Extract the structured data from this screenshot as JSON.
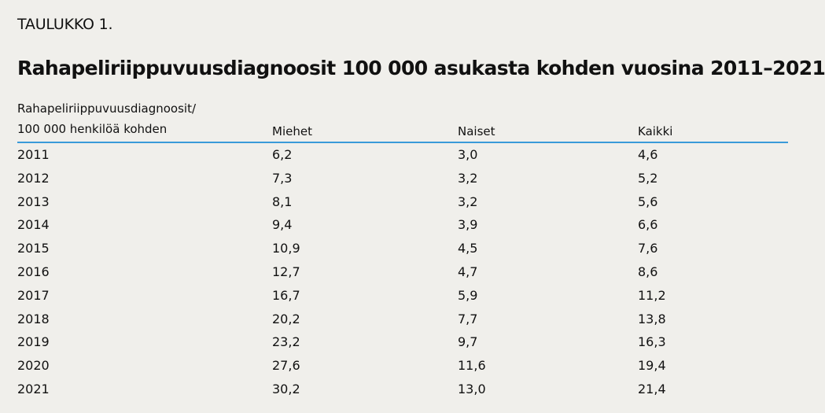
{
  "label": "TAULUKKO 1.",
  "title": "Rahapeliriippuvuusdiagnoosit 100 000 asukasta kohden vuosina 2011–2021",
  "table": {
    "header": {
      "col0_line1": "Rahapeliriippuvuusdiagnoosit/",
      "col0_line2": "100 000 henkilöä kohden",
      "col1": "Miehet",
      "col2": "Naiset",
      "col3": "Kaikki"
    },
    "rows": [
      [
        "2011",
        "6,2",
        "3,0",
        "4,6"
      ],
      [
        "2012",
        "7,3",
        "3,2",
        "5,2"
      ],
      [
        "2013",
        "8,1",
        "3,2",
        "5,6"
      ],
      [
        "2014",
        "9,4",
        "3,9",
        "6,6"
      ],
      [
        "2015",
        "10,9",
        "4,5",
        "7,6"
      ],
      [
        "2016",
        "12,7",
        "4,7",
        "8,6"
      ],
      [
        "2017",
        "16,7",
        "5,9",
        "11,2"
      ],
      [
        "2018",
        "20,2",
        "7,7",
        "13,8"
      ],
      [
        "2019",
        "23,2",
        "9,7",
        "16,3"
      ],
      [
        "2020",
        "27,6",
        "11,6",
        "19,4"
      ],
      [
        "2021",
        "30,2",
        "13,0",
        "21,4"
      ]
    ]
  },
  "colors": {
    "background": "#f0efeb",
    "header_rule": "#3a9ad9",
    "text": "#111111"
  }
}
